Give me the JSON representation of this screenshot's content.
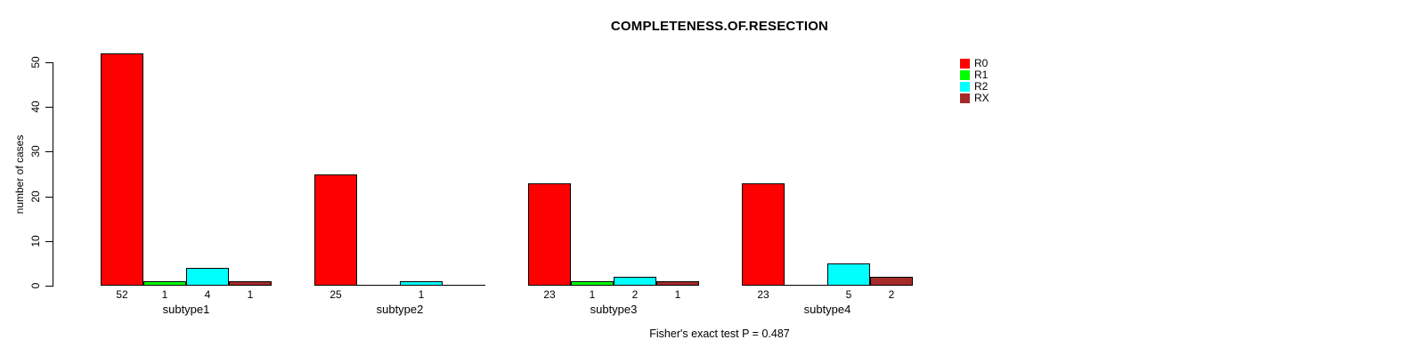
{
  "chart_data": {
    "type": "bar",
    "title": "COMPLETENESS.OF.RESECTION",
    "xlabel": "",
    "ylabel": "number of cases",
    "annotation": "Fisher's exact test P = 0.487",
    "categories": [
      "subtype1",
      "subtype2",
      "subtype3",
      "subtype4"
    ],
    "series": [
      {
        "name": "R0",
        "color": "#ff0000",
        "values": [
          52,
          25,
          23,
          23
        ]
      },
      {
        "name": "R1",
        "color": "#00ff00",
        "values": [
          1,
          0,
          1,
          0
        ]
      },
      {
        "name": "R2",
        "color": "#00ffff",
        "values": [
          4,
          1,
          2,
          5
        ]
      },
      {
        "name": "RX",
        "color": "#a52a2a",
        "values": [
          1,
          0,
          1,
          2
        ]
      }
    ],
    "yticks": [
      0,
      10,
      20,
      30,
      40,
      50
    ],
    "ylim": [
      0,
      52
    ],
    "grid": false,
    "legend_position": "top-right",
    "bar_value_labels": "shown below bars, zeros hidden",
    "colors": {
      "axis": "#000000",
      "background": "#ffffff",
      "text": "#000000"
    }
  }
}
